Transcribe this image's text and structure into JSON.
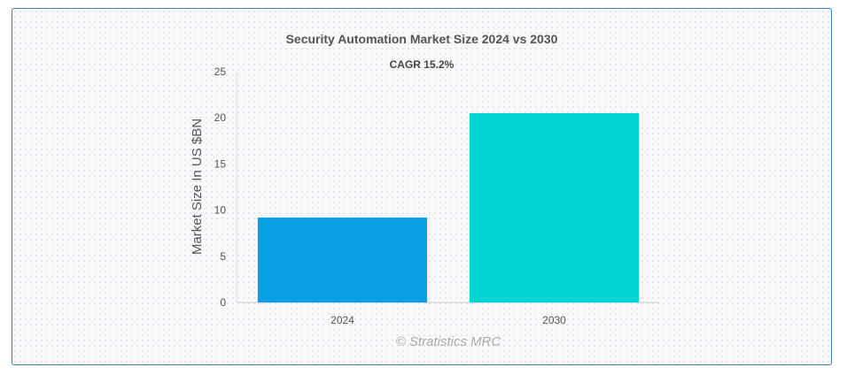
{
  "chart_data": {
    "type": "bar",
    "title": "Security Automation Market Size 2024 vs 2030",
    "subtitle": "CAGR 15.2%",
    "categories": [
      "2024",
      "2030"
    ],
    "values": [
      9.2,
      20.5
    ],
    "colors": [
      "#0aa0e8",
      "#00d4d4"
    ],
    "xlabel": "",
    "ylabel": "Market Size In US $BN",
    "ylim": [
      0,
      25
    ],
    "yticks": [
      "0",
      "5",
      "10",
      "15",
      "20",
      "25"
    ],
    "grid": false,
    "legend": "none"
  },
  "credit": "© Stratistics MRC"
}
